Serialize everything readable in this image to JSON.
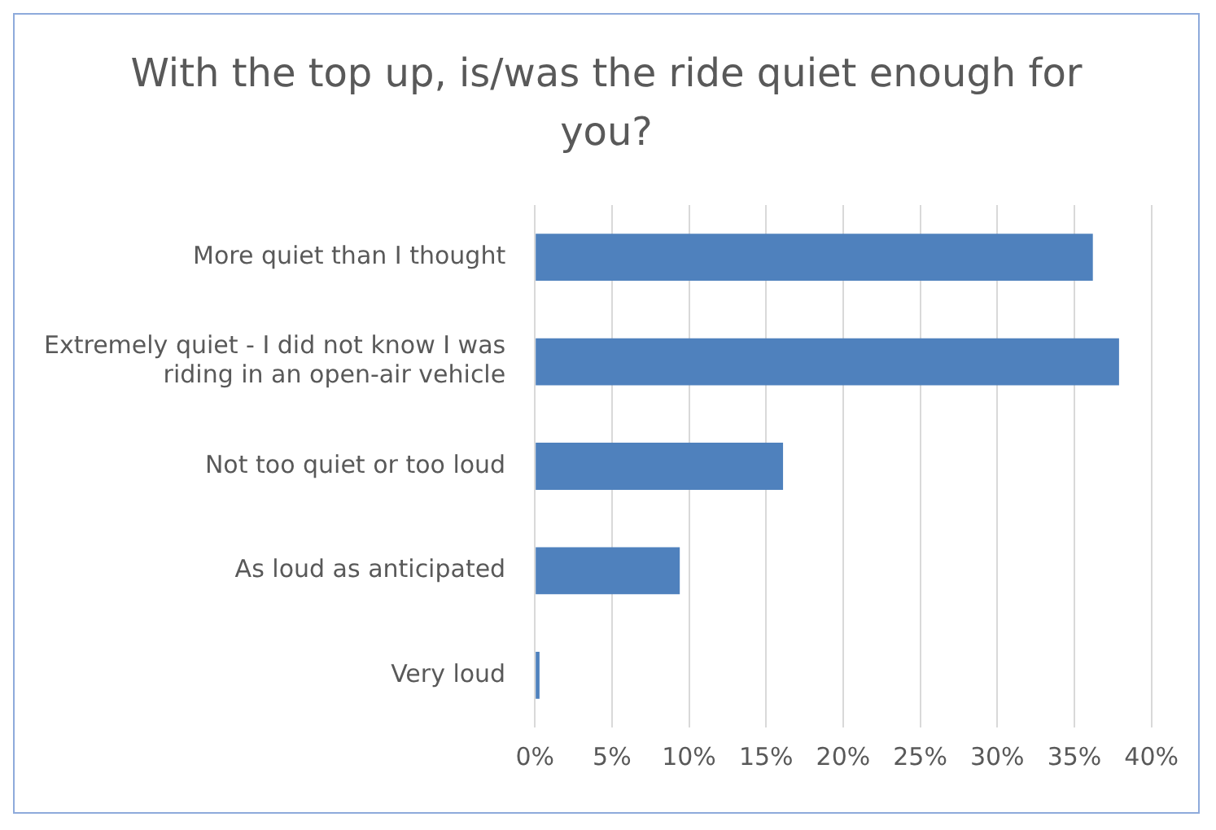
{
  "chart_data": {
    "type": "bar",
    "orientation": "horizontal",
    "title": "With the top up, is/was the ride quiet enough for you?",
    "categories": [
      "More quiet than I thought",
      "Extremely quiet - I did not know I was riding in an open-air vehicle",
      "Not too quiet or too loud",
      "As loud as anticipated",
      "Very loud"
    ],
    "values": [
      36.2,
      37.9,
      16.1,
      9.4,
      0.3
    ],
    "color": "#4f81bd",
    "xlim": [
      0,
      40
    ],
    "xticks": [
      {
        "value": 0,
        "label": "0%"
      },
      {
        "value": 5,
        "label": "5%"
      },
      {
        "value": 10,
        "label": "10%"
      },
      {
        "value": 15,
        "label": "15%"
      },
      {
        "value": 20,
        "label": "20%"
      },
      {
        "value": 25,
        "label": "25%"
      },
      {
        "value": 30,
        "label": "30%"
      },
      {
        "value": 35,
        "label": "35%"
      },
      {
        "value": 40,
        "label": "40%"
      }
    ],
    "grid": "x",
    "legend": false
  }
}
